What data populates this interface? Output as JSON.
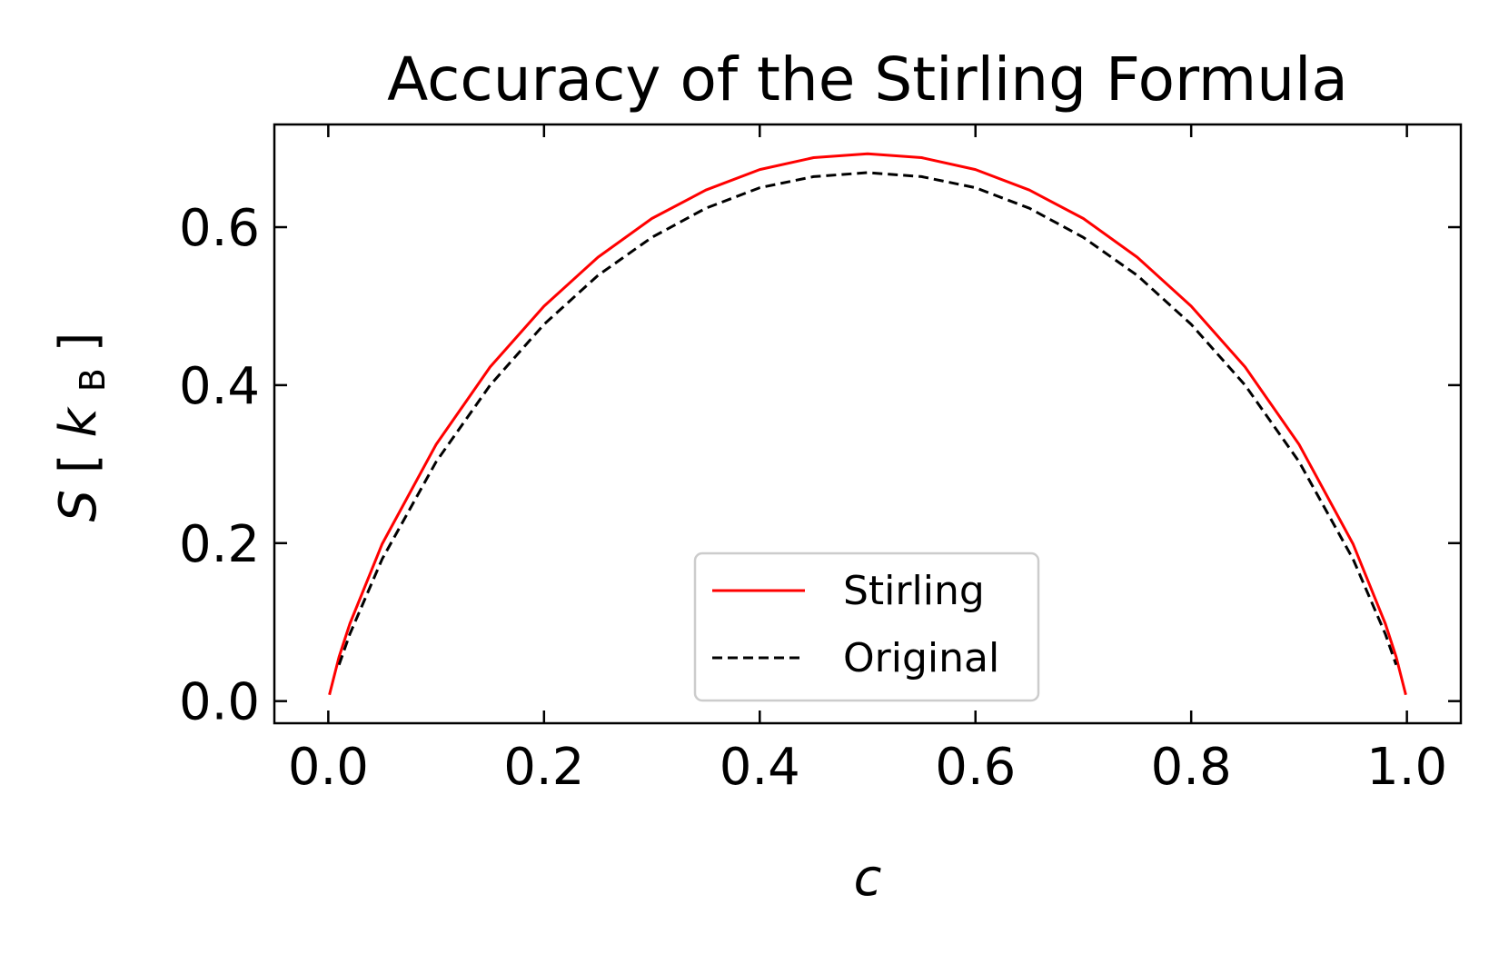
{
  "chart_data": {
    "type": "line",
    "title": "Accuracy of the Stirling Formula",
    "xlabel": "c",
    "ylabel": {
      "symbol": "S",
      "unit_symbol": "k",
      "unit_subscript": "B"
    },
    "xlim": [
      -0.05,
      1.05
    ],
    "ylim": [
      -0.028,
      0.73
    ],
    "xticks": [
      0.0,
      0.2,
      0.4,
      0.6,
      0.8,
      1.0
    ],
    "xtick_labels": [
      "0.0",
      "0.2",
      "0.4",
      "0.6",
      "0.8",
      "1.0"
    ],
    "yticks": [
      0.0,
      0.2,
      0.4,
      0.6
    ],
    "ytick_labels": [
      "0.0",
      "0.2",
      "0.4",
      "0.6"
    ],
    "grid": false,
    "legend_position": "lower-center",
    "series": [
      {
        "name": "Stirling",
        "color": "#ff0000",
        "style": "solid",
        "x": [
          0.001,
          0.01,
          0.02,
          0.05,
          0.1,
          0.15,
          0.2,
          0.25,
          0.3,
          0.35,
          0.4,
          0.45,
          0.5,
          0.55,
          0.6,
          0.65,
          0.7,
          0.75,
          0.8,
          0.85,
          0.9,
          0.95,
          0.98,
          0.99,
          0.999
        ],
        "y": [
          0.008,
          0.056,
          0.098,
          0.199,
          0.325,
          0.423,
          0.5,
          0.562,
          0.611,
          0.647,
          0.673,
          0.688,
          0.693,
          0.688,
          0.673,
          0.647,
          0.611,
          0.562,
          0.5,
          0.423,
          0.325,
          0.199,
          0.098,
          0.056,
          0.008
        ]
      },
      {
        "name": "Original",
        "color": "#000000",
        "style": "dashed",
        "x": [
          0.01,
          0.02,
          0.05,
          0.1,
          0.15,
          0.2,
          0.25,
          0.3,
          0.35,
          0.4,
          0.45,
          0.5,
          0.55,
          0.6,
          0.65,
          0.7,
          0.75,
          0.8,
          0.85,
          0.9,
          0.95,
          0.98,
          0.99
        ],
        "y": [
          0.046,
          0.085,
          0.18,
          0.303,
          0.4,
          0.477,
          0.539,
          0.587,
          0.624,
          0.65,
          0.664,
          0.669,
          0.664,
          0.65,
          0.624,
          0.587,
          0.539,
          0.477,
          0.4,
          0.303,
          0.18,
          0.085,
          0.046
        ]
      }
    ]
  }
}
